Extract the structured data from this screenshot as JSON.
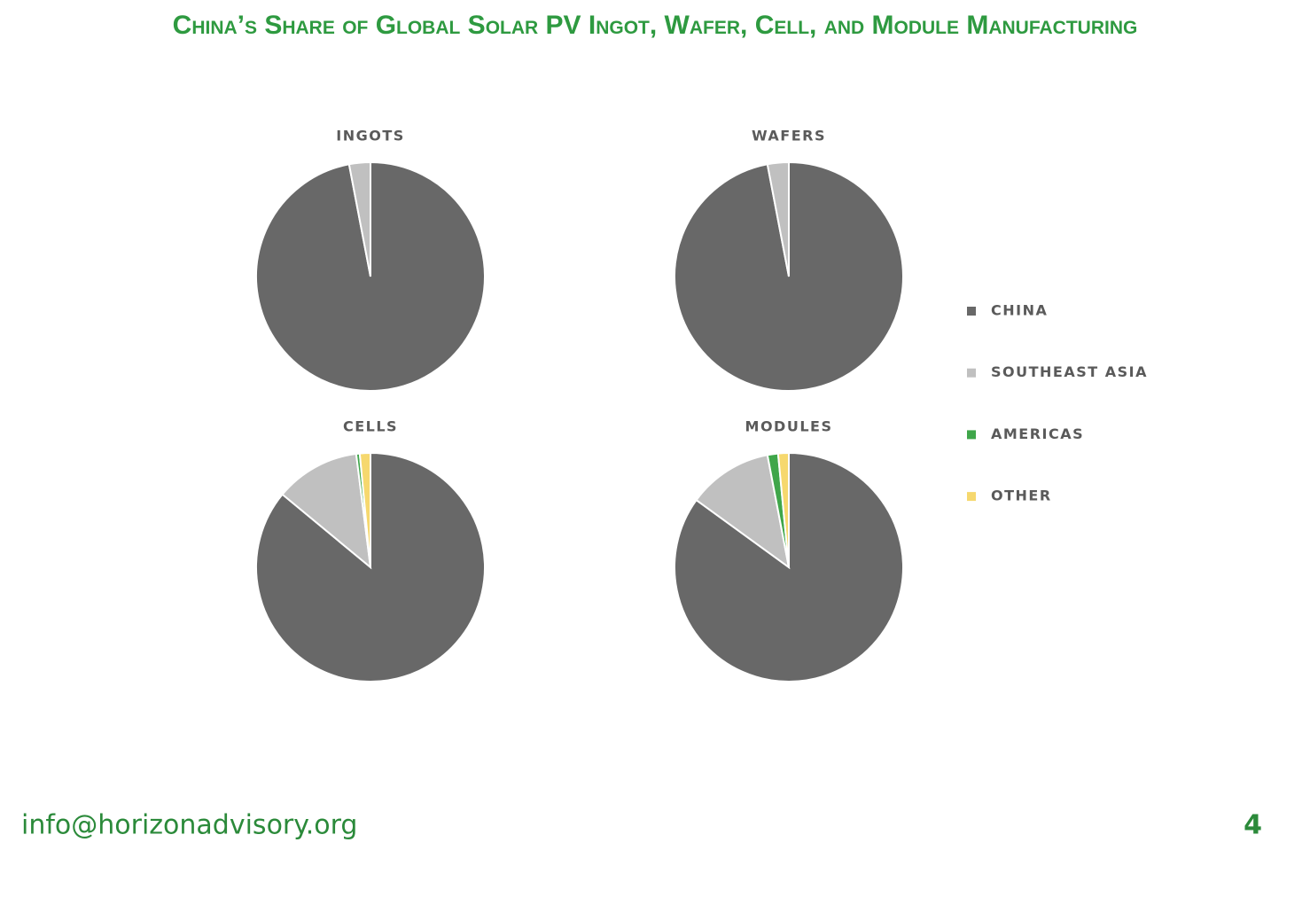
{
  "title": "China’s Share of Global Solar PV Ingot, Wafer, Cell, and Module Manufacturing",
  "legend": {
    "names": [
      "CHINA",
      "SOUTHEAST ASIA",
      "AMERICAS",
      "OTHER"
    ],
    "colors": [
      "#686868",
      "#c0c0c0",
      "#3fa64a",
      "#f6d86e"
    ]
  },
  "chart_data": [
    {
      "type": "pie",
      "title": "INGOTS",
      "values": [
        97,
        3,
        0,
        0
      ]
    },
    {
      "type": "pie",
      "title": "WAFERS",
      "values": [
        97,
        3,
        0,
        0
      ]
    },
    {
      "type": "pie",
      "title": "CELLS",
      "values": [
        86,
        12,
        0.5,
        1.5
      ]
    },
    {
      "type": "pie",
      "title": "MODULES",
      "values": [
        85,
        12,
        1.5,
        1.5
      ]
    }
  ],
  "footer": {
    "email": "info@horizonadvisory.org",
    "page": "4"
  }
}
